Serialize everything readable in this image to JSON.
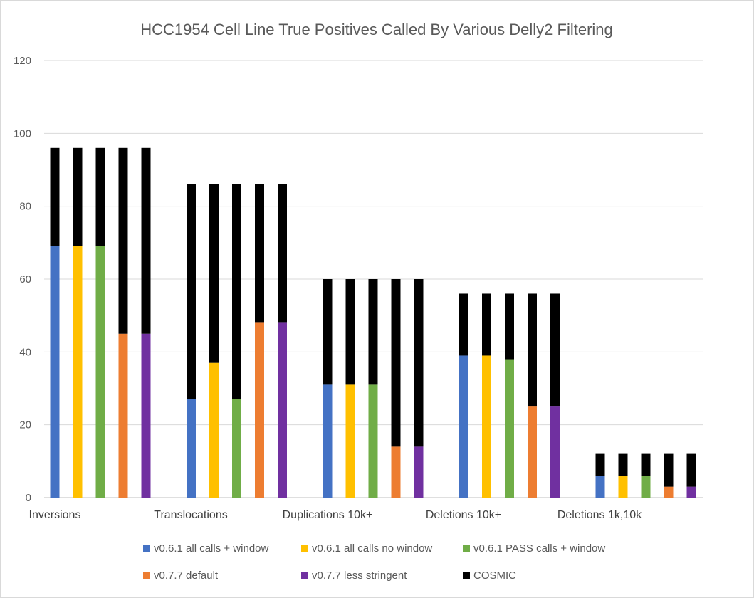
{
  "chart_data": {
    "type": "bar",
    "title": "HCC1954 Cell Line True Positives Called By Various Delly2 Filtering",
    "categories": [
      "Inversions",
      "Translocations",
      "Duplications 10k+",
      "Deletions 10k+",
      "Deletions 1k,10k"
    ],
    "ylim": [
      0,
      120
    ],
    "yticks": [
      0,
      20,
      40,
      60,
      80,
      100,
      120
    ],
    "grid": true,
    "legend_position": "bottom",
    "series": [
      {
        "name": "v0.6.1 all calls + window",
        "color": "#4472c4",
        "values": [
          69,
          27,
          31,
          39,
          6
        ]
      },
      {
        "name": "v0.6.1 all calls no window",
        "color": "#ffc000",
        "values": [
          69,
          37,
          31,
          39,
          6
        ]
      },
      {
        "name": "v0.6.1 PASS calls + window",
        "color": "#70ad47",
        "values": [
          69,
          27,
          31,
          38,
          6
        ]
      },
      {
        "name": "v0.7.7 default",
        "color": "#ed7d31",
        "values": [
          45,
          48,
          14,
          25,
          3
        ]
      },
      {
        "name": "v0.7.7 less stringent",
        "color": "#7030a0",
        "values": [
          45,
          48,
          14,
          25,
          3
        ]
      }
    ],
    "cosmic": {
      "name": "COSMIC",
      "color": "#000000",
      "totals": [
        96,
        86,
        60,
        56,
        12
      ]
    }
  }
}
